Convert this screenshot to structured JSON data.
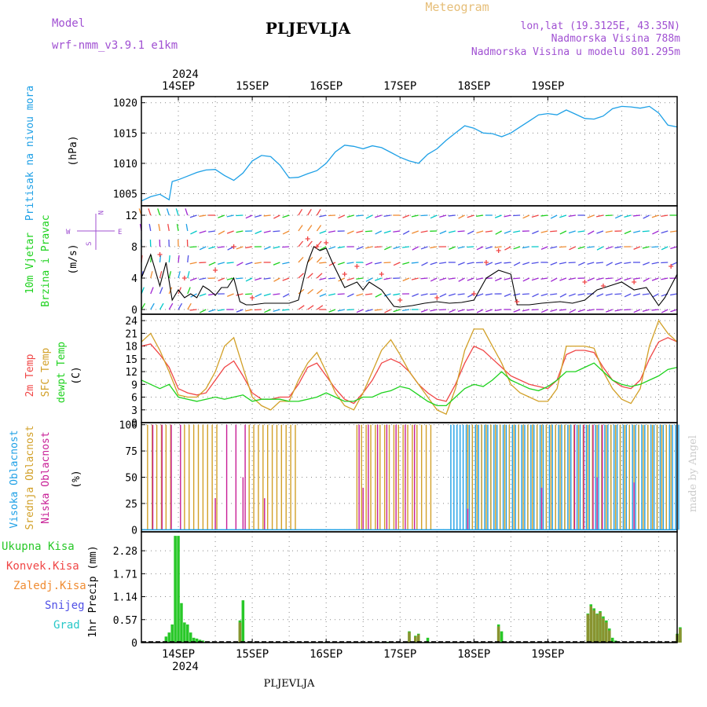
{
  "header": {
    "model_label": "Model",
    "model_name": "wrf-nmm_v3.9.1 e1km",
    "station": "PLJEVLJA",
    "product": "Meteogram",
    "coords": "lon,lat (19.3125E, 43.35N)",
    "elevation": "Nadmorska Visina 788m",
    "model_elevation": "Nadmorska Visina u modelu 801.295m"
  },
  "footer": {
    "station": "PLJEVLJA",
    "credit": "made by Angel"
  },
  "colors": {
    "pressure": "#1ea0e6",
    "temp2m": "#f04646",
    "sfc": "#d2a028",
    "dewpt": "#1ed21e",
    "wind_speed": "#000000",
    "wind_max": "#f04646",
    "high_cloud": "#1ea0e6",
    "mid_cloud": "#d2a028",
    "low_cloud": "#c81e96",
    "precip_total": "#28c828",
    "precip_conv": "#f04646",
    "precip_frozen": "#f08c32",
    "snow": "#5050e6",
    "hail": "#28c8c8",
    "compass": "#a050d2"
  },
  "chart_data": [
    {
      "type": "line",
      "panel": "pressure",
      "ylabel_1": "Pritisak na nivou mora",
      "ylabel_2": "(hPa)",
      "ylim": [
        1003,
        1021
      ],
      "yticks": [
        1005,
        1010,
        1015,
        1020
      ],
      "grid": true,
      "x_unit": "hours from 2024-09-13 12:00",
      "series": [
        {
          "color_key": "pressure",
          "x": [
            0,
            3,
            6,
            9,
            10,
            12,
            15,
            18,
            21,
            24,
            27,
            30,
            33,
            36,
            39,
            42,
            45,
            48,
            51,
            54,
            57,
            60,
            63,
            66,
            69,
            72,
            75,
            78,
            81,
            84,
            87,
            90,
            93,
            96,
            99,
            102,
            105,
            108,
            111,
            114,
            117,
            120,
            123,
            126,
            129,
            132,
            135,
            138,
            141,
            144,
            147,
            150,
            153,
            156,
            159,
            162,
            165,
            168,
            171,
            174
          ],
          "y": [
            1003.8,
            1004.5,
            1004.9,
            1004.0,
            1007.0,
            1007.3,
            1007.9,
            1008.5,
            1008.9,
            1009.0,
            1008.0,
            1007.2,
            1008.4,
            1010.4,
            1011.3,
            1011.1,
            1009.7,
            1007.6,
            1007.7,
            1008.3,
            1008.8,
            1010.0,
            1011.9,
            1013.0,
            1012.8,
            1012.4,
            1012.9,
            1012.6,
            1011.8,
            1011.0,
            1010.4,
            1010.0,
            1011.5,
            1012.4,
            1013.8,
            1015.0,
            1016.2,
            1015.8,
            1015.0,
            1014.9,
            1014.4,
            1015.0,
            1016.0,
            1017.0,
            1018.0,
            1018.2,
            1018.0,
            1018.8,
            1018.1,
            1017.4,
            1017.3,
            1017.8,
            1019.0,
            1019.4,
            1019.3,
            1019.1,
            1019.4,
            1018.3,
            1016.3,
            1016.0
          ]
        }
      ]
    },
    {
      "type": "line",
      "panel": "wind",
      "ylabel_1": "10m Vjetar",
      "ylabel_1b": "Brzina i Pravac",
      "ylabel_2": "(m/s)",
      "ylim": [
        -0.6,
        13.2
      ],
      "yticks": [
        0,
        4,
        8,
        12
      ],
      "grid": true,
      "compass": {
        "n": "N",
        "s": "S",
        "w": "W",
        "e": "E"
      },
      "x_unit": "hours from 2024-09-13 12:00",
      "speed_x": [
        0,
        3,
        6,
        8,
        10,
        12,
        14,
        16,
        18,
        20,
        22,
        24,
        26,
        28,
        30,
        32,
        34,
        36,
        40,
        44,
        48,
        51,
        54,
        56,
        58,
        60,
        62,
        66,
        70,
        72,
        74,
        78,
        82,
        84,
        88,
        92,
        96,
        100,
        104,
        108,
        112,
        116,
        120,
        122,
        126,
        130,
        136,
        140,
        144,
        148,
        152,
        156,
        160,
        164,
        168,
        170,
        172,
        174
      ],
      "speed_y": [
        4,
        7,
        3,
        6,
        1.2,
        2.5,
        1.5,
        2,
        1.5,
        3,
        2.5,
        1.8,
        2.8,
        2.8,
        4,
        1,
        0.6,
        0.6,
        0.8,
        0.8,
        0.8,
        1.2,
        6,
        8,
        7.5,
        7.8,
        6,
        2.8,
        3.5,
        2.5,
        3.5,
        2.5,
        0.4,
        0.3,
        0.5,
        0.8,
        1,
        0.8,
        0.9,
        1.2,
        4,
        5,
        4.5,
        0.6,
        0.6,
        0.8,
        1,
        0.8,
        1.2,
        2.5,
        3,
        3.5,
        2.5,
        2.8,
        0.5,
        1.5,
        3,
        4.5
      ],
      "max_x": [
        6,
        14,
        24,
        30,
        36,
        54,
        57,
        60,
        66,
        70,
        78,
        84,
        96,
        108,
        112,
        116,
        122,
        144,
        150,
        160,
        172
      ],
      "max_y": [
        7,
        4,
        5,
        8,
        1.5,
        9,
        8,
        8.5,
        4.5,
        5.5,
        4.5,
        1.2,
        1.5,
        2,
        6,
        7.5,
        1,
        3.5,
        3,
        3.5,
        5.5
      ]
    },
    {
      "type": "line",
      "panel": "temperature",
      "ylabel_1": "2m Temp",
      "ylabel_1b": "SFC Temp",
      "ylabel_1c": "dewpt Temp",
      "ylabel_2": "(C)",
      "ylim": [
        0,
        25.5
      ],
      "yticks": [
        0,
        3,
        6,
        9,
        12,
        15,
        18,
        21,
        24
      ],
      "grid": true,
      "x_unit": "hours from 2024-09-13 12:00",
      "series": [
        {
          "color_key": "temp2m",
          "x": [
            0,
            3,
            6,
            9,
            12,
            15,
            18,
            21,
            24,
            27,
            30,
            33,
            36,
            39,
            42,
            45,
            48,
            51,
            54,
            57,
            60,
            63,
            66,
            69,
            72,
            75,
            78,
            81,
            84,
            87,
            90,
            93,
            96,
            99,
            102,
            105,
            108,
            111,
            114,
            117,
            120,
            123,
            126,
            129,
            132,
            135,
            138,
            141,
            144,
            147,
            150,
            153,
            156,
            159,
            162,
            165,
            168,
            171,
            174
          ],
          "y": [
            18,
            18.5,
            16,
            13,
            8,
            7,
            6.5,
            7,
            10,
            13,
            14.5,
            11,
            7,
            5.5,
            5.5,
            6,
            6,
            9,
            13,
            14,
            11,
            8,
            5.5,
            4.5,
            7,
            10,
            14,
            15,
            14,
            12,
            9,
            7,
            5.5,
            5,
            9,
            14,
            18,
            17,
            15,
            13,
            11,
            10,
            9,
            8.5,
            8,
            10,
            16,
            17,
            17,
            16.5,
            13,
            10,
            8.5,
            8,
            10,
            15,
            19,
            20,
            19
          ]
        },
        {
          "color_key": "sfc",
          "x": [
            0,
            3,
            6,
            9,
            12,
            15,
            18,
            21,
            24,
            27,
            30,
            33,
            36,
            39,
            42,
            45,
            48,
            51,
            54,
            57,
            60,
            63,
            66,
            69,
            72,
            75,
            78,
            81,
            84,
            87,
            90,
            93,
            96,
            99,
            102,
            105,
            108,
            111,
            114,
            117,
            120,
            123,
            126,
            129,
            132,
            135,
            138,
            141,
            144,
            147,
            150,
            153,
            156,
            159,
            162,
            165,
            168,
            171,
            174
          ],
          "y": [
            19,
            21,
            17,
            12,
            6.5,
            6,
            6,
            8,
            12,
            18,
            20,
            13,
            6,
            4,
            3,
            5,
            5,
            10,
            14,
            16.5,
            12,
            7,
            4,
            3,
            7,
            12,
            17,
            19.5,
            16,
            12,
            9,
            6,
            3,
            2,
            8,
            17,
            22,
            22,
            18,
            14,
            9,
            7,
            6,
            5,
            5,
            8,
            18,
            18,
            18,
            17.5,
            12,
            8,
            5.5,
            4.5,
            8,
            18,
            24,
            21,
            19
          ]
        },
        {
          "color_key": "dewpt",
          "x": [
            0,
            3,
            6,
            9,
            12,
            15,
            18,
            21,
            24,
            27,
            30,
            33,
            36,
            39,
            42,
            45,
            48,
            51,
            54,
            57,
            60,
            63,
            66,
            69,
            72,
            75,
            78,
            81,
            84,
            87,
            90,
            93,
            96,
            99,
            102,
            105,
            108,
            111,
            114,
            117,
            120,
            123,
            126,
            129,
            132,
            135,
            138,
            141,
            144,
            147,
            150,
            153,
            156,
            159,
            162,
            165,
            168,
            171,
            174
          ],
          "y": [
            10,
            9,
            8,
            9,
            6,
            5.5,
            5,
            5.5,
            6,
            5.5,
            6,
            6.5,
            5,
            5.5,
            5.5,
            5.5,
            5,
            5,
            5.5,
            6,
            7,
            6,
            5,
            5,
            6,
            6,
            7,
            7.5,
            8.5,
            8,
            6.5,
            5,
            4,
            4,
            6,
            8,
            9,
            8.5,
            10,
            12,
            10,
            9,
            8,
            7.5,
            8.5,
            10,
            12,
            12,
            13,
            14,
            12,
            10,
            9,
            8.5,
            9,
            10,
            11,
            12.5,
            13
          ]
        }
      ]
    },
    {
      "type": "bar",
      "panel": "cloud",
      "ylabel_1": "Visoka Oblacnost",
      "ylabel_1b": "Srednja Oblacnost",
      "ylabel_1c": "Niska Oblacnost",
      "ylabel_2": "(%)",
      "ylim": [
        -2,
        102
      ],
      "yticks": [
        0,
        25,
        50,
        75,
        100
      ],
      "grid": true,
      "x_unit": "hours from 2024-09-13 12:00",
      "mid_segments": [
        [
          2,
          10
        ],
        [
          14,
          25
        ],
        [
          35,
          50
        ],
        [
          70,
          95
        ],
        [
          106,
          172
        ]
      ],
      "low_segments": [
        [
          3,
          12
        ],
        [
          27,
          35
        ],
        [
          70,
          90
        ],
        [
          140,
          150
        ]
      ],
      "high_segments": [
        [
          100,
          174
        ]
      ],
      "low_spikes": [
        [
          24,
          30
        ],
        [
          33,
          50
        ],
        [
          40,
          30
        ],
        [
          72,
          40
        ],
        [
          106,
          20
        ],
        [
          130,
          40
        ],
        [
          148,
          50
        ],
        [
          160,
          45
        ]
      ]
    },
    {
      "type": "bar",
      "panel": "precip",
      "ylabel_2": "1hr Precip (mm)",
      "ylim": [
        0,
        2.75
      ],
      "yticks": [
        0,
        0.57,
        1.14,
        1.71,
        2.28
      ],
      "ytick_labels": [
        "0",
        "0.57",
        "1.14",
        "1.71",
        "2.28"
      ],
      "grid": true,
      "legend": [
        "Ukupna Kisa",
        "Konvek.Kisa",
        "Zaledj.Kisa",
        "Snijeg",
        "Grad"
      ],
      "x_unit": "hours from 2024-09-13 12:00",
      "total_x": [
        8,
        9,
        10,
        11,
        12,
        13,
        14,
        15,
        16,
        17,
        18,
        19,
        20,
        32,
        33,
        56,
        57,
        58,
        60,
        80,
        81,
        82,
        87,
        89,
        90,
        93,
        116,
        117,
        118,
        145,
        146,
        147,
        148,
        149,
        150,
        151,
        152,
        153,
        154,
        155,
        174,
        175
      ],
      "total_y": [
        0.15,
        0.25,
        0.45,
        2.65,
        2.65,
        0.98,
        0.5,
        0.45,
        0.25,
        0.12,
        0.1,
        0.07,
        0.05,
        0.55,
        1.05,
        0.02,
        0.01,
        0.02,
        0.02,
        0.02,
        0.01,
        0.01,
        0.28,
        0.17,
        0.22,
        0.12,
        0.45,
        0.28,
        0.01,
        0.72,
        0.95,
        0.85,
        0.72,
        0.78,
        0.65,
        0.55,
        0.35,
        0.12,
        0.05,
        0.02,
        0.22,
        0.38
      ],
      "conv_x": [
        32,
        87,
        89,
        90,
        116,
        145,
        146,
        147,
        148,
        149,
        150,
        151,
        152,
        174,
        175
      ],
      "conv_y": [
        0.5,
        0.26,
        0.15,
        0.2,
        0.4,
        0.7,
        0.9,
        0.8,
        0.7,
        0.75,
        0.6,
        0.5,
        0.3,
        0.2,
        0.35
      ]
    }
  ],
  "xaxis": {
    "year": "2024",
    "day_labels": [
      "14SEP",
      "15SEP",
      "16SEP",
      "17SEP",
      "18SEP",
      "19SEP"
    ],
    "day_hours": [
      12,
      36,
      60,
      84,
      108,
      132
    ]
  }
}
